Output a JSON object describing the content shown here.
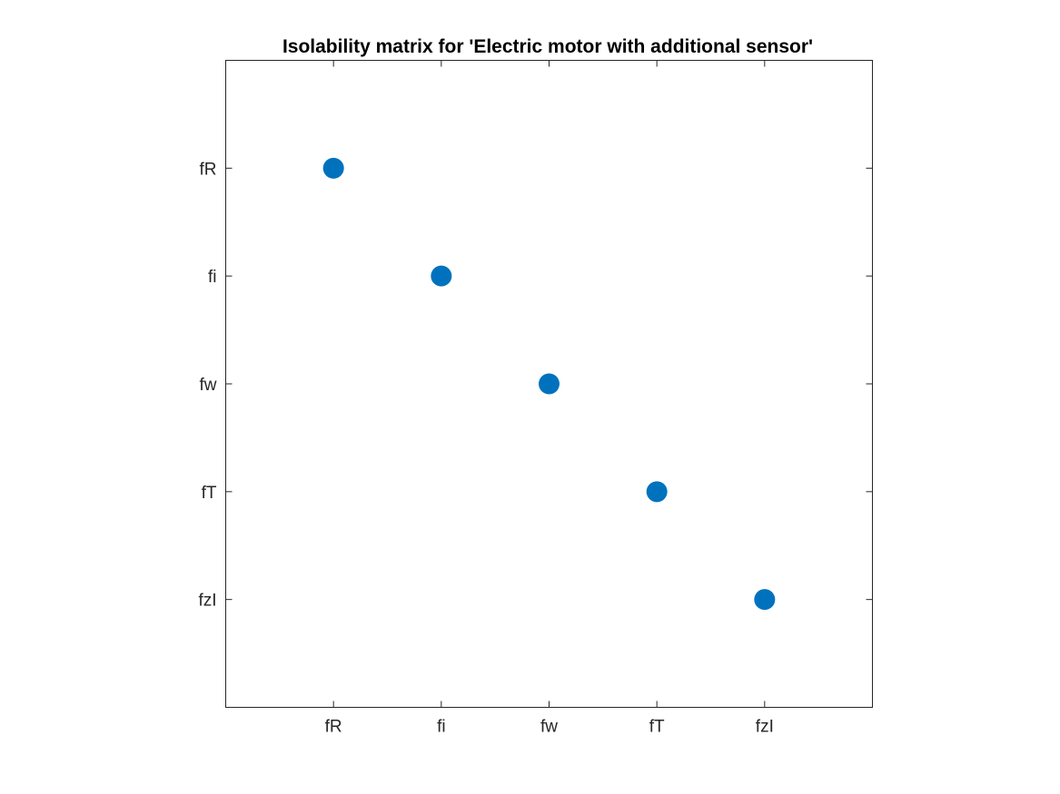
{
  "chart_data": {
    "type": "scatter",
    "title": "Isolability matrix for 'Electric motor with additional sensor'",
    "xlabel": "",
    "ylabel": "",
    "x_categories": [
      "fR",
      "fi",
      "fw",
      "fT",
      "fzI"
    ],
    "y_categories": [
      "fR",
      "fi",
      "fw",
      "fT",
      "fzI"
    ],
    "xlim": [
      0,
      6
    ],
    "ylim": [
      0,
      6
    ],
    "y_direction": "reverse",
    "grid": false,
    "marker_color": "#0072bd",
    "points": [
      {
        "x": "fR",
        "y": "fR"
      },
      {
        "x": "fi",
        "y": "fi"
      },
      {
        "x": "fw",
        "y": "fw"
      },
      {
        "x": "fT",
        "y": "fT"
      },
      {
        "x": "fzI",
        "y": "fzI"
      }
    ]
  }
}
